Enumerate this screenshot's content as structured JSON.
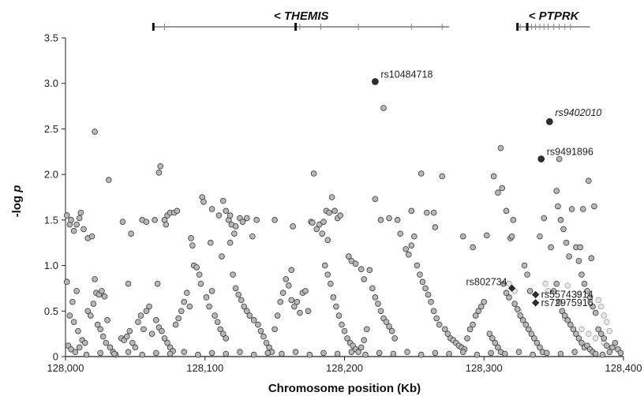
{
  "chart_data": {
    "type": "scatter",
    "title": "",
    "xlabel": "Chromosome position (Kb)",
    "ylabel_main": "-log ",
    "ylabel_italic": "p",
    "xlim": [
      128000,
      128400
    ],
    "ylim": [
      0,
      3.5
    ],
    "x_ticks": [
      {
        "value": 128000,
        "label": "128,000"
      },
      {
        "value": 128100,
        "label": "128,100"
      },
      {
        "value": 128200,
        "label": "128,200"
      },
      {
        "value": 128300,
        "label": "128,300"
      },
      {
        "value": 128400,
        "label": "128,400"
      }
    ],
    "y_ticks": [
      {
        "value": 0,
        "label": "0"
      },
      {
        "value": 0.5,
        "label": "0.5"
      },
      {
        "value": 1.0,
        "label": "1.0"
      },
      {
        "value": 1.5,
        "label": "1.5"
      },
      {
        "value": 2.0,
        "label": "2.0"
      },
      {
        "value": 2.5,
        "label": "2.5"
      },
      {
        "value": 3.0,
        "label": "3.0"
      },
      {
        "value": 3.5,
        "label": "3.5"
      }
    ],
    "grid": false,
    "colors": {
      "background_point_fill": "#b8b8b8",
      "background_point_stroke": "#3a3a3a",
      "faint_point_fill": "#e6e6e6",
      "faint_point_stroke": "#9a9a9a",
      "highlight": "#2e2e2e",
      "axis": "#222222"
    },
    "genes": [
      {
        "name": "< THEMIS",
        "start": 128063,
        "end": 128275,
        "exons": [
          128063,
          128071,
          128165,
          128168,
          128183,
          128210,
          128248,
          128270
        ]
      },
      {
        "name": "< PTPRK",
        "start": 128324,
        "end": 128376,
        "exons": [
          128324,
          128326,
          128331,
          128334,
          128337,
          128340,
          128343,
          128346,
          128350,
          128354,
          128358,
          128362
        ]
      }
    ],
    "highlighted_snps": [
      {
        "label": "rs10484718",
        "x": 128222,
        "y": 3.02,
        "shape": "circle",
        "italic": false
      },
      {
        "label": "rs9402010",
        "x": 128347,
        "y": 2.58,
        "shape": "circle",
        "italic": true
      },
      {
        "label": "rs9491896",
        "x": 128341,
        "y": 2.17,
        "shape": "circle",
        "italic": false
      },
      {
        "label": "rs802734",
        "x": 128320,
        "y": 0.75,
        "shape": "diamond",
        "italic": false
      },
      {
        "label": "rs55743914",
        "x": 128337,
        "y": 0.68,
        "shape": "diamond",
        "italic": false
      },
      {
        "label": "rs72975916",
        "x": 128337,
        "y": 0.59,
        "shape": "diamond",
        "italic": false
      }
    ],
    "points": [
      [
        128001,
        1.55
      ],
      [
        128003,
        1.45
      ],
      [
        128004,
        1.5
      ],
      [
        128006,
        1.38
      ],
      [
        128008,
        1.45
      ],
      [
        128011,
        1.58
      ],
      [
        128013,
        1.4
      ],
      [
        128016,
        1.3
      ],
      [
        128019,
        1.32
      ],
      [
        128010,
        1.52
      ],
      [
        128001,
        0.82
      ],
      [
        128005,
        0.6
      ],
      [
        128008,
        0.72
      ],
      [
        128003,
        0.45
      ],
      [
        128006,
        0.38
      ],
      [
        128009,
        0.28
      ],
      [
        128012,
        0.18
      ],
      [
        128002,
        0.12
      ],
      [
        128004,
        0.08
      ],
      [
        128007,
        0.05
      ],
      [
        128010,
        0.1
      ],
      [
        128014,
        0.15
      ],
      [
        128016,
        0.5
      ],
      [
        128018,
        0.45
      ],
      [
        128020,
        0.58
      ],
      [
        128022,
        0.7
      ],
      [
        128024,
        0.68
      ],
      [
        128026,
        0.72
      ],
      [
        128028,
        0.66
      ],
      [
        128030,
        0.4
      ],
      [
        128021,
        0.85
      ],
      [
        128023,
        0.35
      ],
      [
        128025,
        0.3
      ],
      [
        128027,
        0.22
      ],
      [
        128029,
        0.15
      ],
      [
        128032,
        0.1
      ],
      [
        128034,
        0.05
      ],
      [
        128036,
        0.02
      ],
      [
        128021,
        2.47
      ],
      [
        128031,
        1.94
      ],
      [
        128040,
        0.2
      ],
      [
        128042,
        0.18
      ],
      [
        128044,
        0.22
      ],
      [
        128046,
        0.28
      ],
      [
        128048,
        0.15
      ],
      [
        128050,
        0.1
      ],
      [
        128052,
        0.38
      ],
      [
        128054,
        0.45
      ],
      [
        128056,
        0.3
      ],
      [
        128058,
        0.5
      ],
      [
        128060,
        0.55
      ],
      [
        128062,
        0.25
      ],
      [
        128041,
        1.48
      ],
      [
        128047,
        1.35
      ],
      [
        128055,
        1.5
      ],
      [
        128058,
        1.48
      ],
      [
        128045,
        0.8
      ],
      [
        128066,
        0.8
      ],
      [
        128064,
        1.5
      ],
      [
        128068,
        2.09
      ],
      [
        128067,
        2.02
      ],
      [
        128071,
        1.5
      ],
      [
        128073,
        1.55
      ],
      [
        128075,
        1.58
      ],
      [
        128078,
        1.58
      ],
      [
        128080,
        1.6
      ],
      [
        128072,
        1.45
      ],
      [
        128065,
        0.4
      ],
      [
        128067,
        0.32
      ],
      [
        128069,
        0.28
      ],
      [
        128071,
        0.2
      ],
      [
        128073,
        0.15
      ],
      [
        128075,
        0.1
      ],
      [
        128077,
        0.06
      ],
      [
        128079,
        0.35
      ],
      [
        128081,
        0.42
      ],
      [
        128083,
        0.5
      ],
      [
        128085,
        0.6
      ],
      [
        128087,
        0.7
      ],
      [
        128089,
        0.55
      ],
      [
        128090,
        1.3
      ],
      [
        128091,
        1.22
      ],
      [
        128092,
        1.0
      ],
      [
        128094,
        0.98
      ],
      [
        128096,
        0.9
      ],
      [
        128097,
        0.8
      ],
      [
        128098,
        1.75
      ],
      [
        128099,
        1.7
      ],
      [
        128101,
        0.65
      ],
      [
        128103,
        0.55
      ],
      [
        128105,
        0.72
      ],
      [
        128107,
        0.45
      ],
      [
        128109,
        0.38
      ],
      [
        128111,
        0.3
      ],
      [
        128113,
        0.25
      ],
      [
        128115,
        0.2
      ],
      [
        128105,
        1.62
      ],
      [
        128110,
        1.55
      ],
      [
        128113,
        1.71
      ],
      [
        128115,
        1.6
      ],
      [
        128117,
        1.5
      ],
      [
        128119,
        1.45
      ],
      [
        128121,
        1.35
      ],
      [
        128104,
        1.25
      ],
      [
        128112,
        1.1
      ],
      [
        128118,
        1.25
      ],
      [
        128120,
        0.9
      ],
      [
        128122,
        0.75
      ],
      [
        128124,
        0.68
      ],
      [
        128126,
        0.62
      ],
      [
        128128,
        0.55
      ],
      [
        128130,
        0.5
      ],
      [
        128132,
        0.45
      ],
      [
        128118,
        1.55
      ],
      [
        128122,
        1.43
      ],
      [
        128125,
        1.52
      ],
      [
        128127,
        1.48
      ],
      [
        128130,
        1.52
      ],
      [
        128134,
        1.32
      ],
      [
        128137,
        1.5
      ],
      [
        128135,
        0.4
      ],
      [
        128138,
        0.35
      ],
      [
        128140,
        0.28
      ],
      [
        128142,
        0.22
      ],
      [
        128144,
        0.15
      ],
      [
        128146,
        0.1
      ],
      [
        128148,
        0.05
      ],
      [
        128150,
        0.3
      ],
      [
        128152,
        0.45
      ],
      [
        128154,
        0.6
      ],
      [
        128156,
        0.7
      ],
      [
        128158,
        0.85
      ],
      [
        128160,
        0.78
      ],
      [
        128162,
        0.62
      ],
      [
        128164,
        0.55
      ],
      [
        128150,
        1.5
      ],
      [
        128162,
        0.95
      ],
      [
        128163,
        1.43
      ],
      [
        128166,
        0.6
      ],
      [
        128168,
        0.48
      ],
      [
        128170,
        0.7
      ],
      [
        128172,
        0.72
      ],
      [
        128174,
        0.5
      ],
      [
        128176,
        1.48
      ],
      [
        128177,
        1.47
      ],
      [
        128180,
        1.4
      ],
      [
        128182,
        1.45
      ],
      [
        128184,
        1.35
      ],
      [
        128186,
        1.0
      ],
      [
        128188,
        0.9
      ],
      [
        128190,
        0.8
      ],
      [
        128192,
        0.65
      ],
      [
        128194,
        0.55
      ],
      [
        128196,
        0.45
      ],
      [
        128198,
        0.35
      ],
      [
        128200,
        0.28
      ],
      [
        128178,
        2.01
      ],
      [
        128187,
        1.6
      ],
      [
        128189,
        1.58
      ],
      [
        128191,
        1.75
      ],
      [
        128193,
        1.6
      ],
      [
        128195,
        1.52
      ],
      [
        128197,
        1.55
      ],
      [
        128185,
        1.48
      ],
      [
        128188,
        1.28
      ],
      [
        128202,
        0.2
      ],
      [
        128204,
        0.15
      ],
      [
        128206,
        0.12
      ],
      [
        128208,
        0.08
      ],
      [
        128210,
        0.05
      ],
      [
        128212,
        0.1
      ],
      [
        128214,
        0.18
      ],
      [
        128216,
        0.3
      ],
      [
        128203,
        1.1
      ],
      [
        128205,
        1.05
      ],
      [
        128208,
        1.02
      ],
      [
        128212,
        0.96
      ],
      [
        128214,
        0.85
      ],
      [
        128218,
        0.95
      ],
      [
        128220,
        0.75
      ],
      [
        128222,
        0.65
      ],
      [
        128224,
        0.58
      ],
      [
        128226,
        0.5
      ],
      [
        128228,
        0.42
      ],
      [
        128230,
        0.38
      ],
      [
        128232,
        0.33
      ],
      [
        128234,
        0.28
      ],
      [
        128236,
        0.2
      ],
      [
        128228,
        2.73
      ],
      [
        128222,
        1.73
      ],
      [
        128226,
        1.5
      ],
      [
        128232,
        1.52
      ],
      [
        128238,
        1.5
      ],
      [
        128240,
        1.35
      ],
      [
        128244,
        1.18
      ],
      [
        128246,
        1.12
      ],
      [
        128248,
        1.22
      ],
      [
        128250,
        1.32
      ],
      [
        128252,
        1.0
      ],
      [
        128254,
        0.9
      ],
      [
        128256,
        0.82
      ],
      [
        128258,
        0.75
      ],
      [
        128260,
        0.68
      ],
      [
        128262,
        0.6
      ],
      [
        128264,
        0.5
      ],
      [
        128266,
        0.42
      ],
      [
        128268,
        0.35
      ],
      [
        128248,
        1.6
      ],
      [
        128255,
        2.01
      ],
      [
        128259,
        1.58
      ],
      [
        128264,
        1.58
      ],
      [
        128270,
        1.98
      ],
      [
        128265,
        1.42
      ],
      [
        128272,
        0.3
      ],
      [
        128274,
        0.25
      ],
      [
        128276,
        0.2
      ],
      [
        128278,
        0.18
      ],
      [
        128280,
        0.15
      ],
      [
        128282,
        0.12
      ],
      [
        128284,
        0.1
      ],
      [
        128286,
        0.08
      ],
      [
        128288,
        0.2
      ],
      [
        128290,
        0.3
      ],
      [
        128292,
        0.35
      ],
      [
        128294,
        0.45
      ],
      [
        128296,
        0.5
      ],
      [
        128298,
        0.55
      ],
      [
        128300,
        0.6
      ],
      [
        128285,
        1.32
      ],
      [
        128292,
        1.2
      ],
      [
        128302,
        1.33
      ],
      [
        128307,
        1.98
      ],
      [
        128310,
        1.8
      ],
      [
        128313,
        1.85
      ],
      [
        128316,
        1.6
      ],
      [
        128319,
        1.3
      ],
      [
        128304,
        0.25
      ],
      [
        128306,
        0.2
      ],
      [
        128308,
        0.15
      ],
      [
        128310,
        0.1
      ],
      [
        128312,
        0.05
      ],
      [
        128314,
        0.8
      ],
      [
        128316,
        0.7
      ],
      [
        128318,
        0.65
      ],
      [
        128322,
        0.58
      ],
      [
        128324,
        0.52
      ],
      [
        128326,
        0.45
      ],
      [
        128312,
        2.29
      ],
      [
        128321,
        1.5
      ],
      [
        128320,
        1.32
      ],
      [
        128328,
        0.4
      ],
      [
        128330,
        0.35
      ],
      [
        128332,
        0.3
      ],
      [
        128334,
        0.25
      ],
      [
        128336,
        0.2
      ],
      [
        128338,
        0.15
      ],
      [
        128340,
        0.1
      ],
      [
        128342,
        0.05
      ],
      [
        128329,
        1.0
      ],
      [
        128331,
        0.9
      ],
      [
        128333,
        0.72
      ],
      [
        128340,
        1.32
      ],
      [
        128343,
        1.52
      ],
      [
        128348,
        1.2
      ],
      [
        128352,
        0.8
      ],
      [
        128350,
        0.72
      ],
      [
        128354,
        0.6
      ],
      [
        128356,
        0.5
      ],
      [
        128358,
        0.45
      ],
      [
        128360,
        0.4
      ],
      [
        128362,
        0.35
      ],
      [
        128364,
        0.3
      ],
      [
        128352,
        1.82
      ],
      [
        128353,
        1.65
      ],
      [
        128355,
        1.5
      ],
      [
        128357,
        1.4
      ],
      [
        128359,
        1.25
      ],
      [
        128361,
        1.1
      ],
      [
        128354,
        2.17
      ],
      [
        128363,
        1.62
      ],
      [
        128366,
        1.2
      ],
      [
        128368,
        1.05
      ],
      [
        128370,
        0.9
      ],
      [
        128372,
        0.8
      ],
      [
        128374,
        0.72
      ],
      [
        128376,
        0.65
      ],
      [
        128378,
        0.55
      ],
      [
        128380,
        0.48
      ],
      [
        128366,
        0.25
      ],
      [
        128368,
        0.2
      ],
      [
        128370,
        0.15
      ],
      [
        128372,
        0.1
      ],
      [
        128374,
        0.12
      ],
      [
        128376,
        0.08
      ],
      [
        128378,
        0.05
      ],
      [
        128380,
        0.03
      ],
      [
        128375,
        1.93
      ],
      [
        128379,
        1.65
      ],
      [
        128371,
        1.62
      ],
      [
        128369,
        1.2
      ],
      [
        128377,
        1.08
      ],
      [
        128382,
        0.3
      ],
      [
        128384,
        0.25
      ],
      [
        128386,
        0.2
      ],
      [
        128388,
        0.12
      ],
      [
        128390,
        0.05
      ],
      [
        128392,
        0.1
      ],
      [
        128394,
        0.15
      ],
      [
        128396,
        0.08
      ],
      [
        128398,
        0.04
      ],
      [
        128015,
        0.02
      ],
      [
        128025,
        0.04
      ],
      [
        128035,
        0.03
      ],
      [
        128045,
        0.05
      ],
      [
        128055,
        0.02
      ],
      [
        128065,
        0.04
      ],
      [
        128075,
        0.03
      ],
      [
        128085,
        0.05
      ],
      [
        128095,
        0.02
      ],
      [
        128105,
        0.04
      ],
      [
        128115,
        0.03
      ],
      [
        128125,
        0.05
      ],
      [
        128135,
        0.02
      ],
      [
        128145,
        0.04
      ],
      [
        128155,
        0.03
      ],
      [
        128165,
        0.05
      ],
      [
        128175,
        0.02
      ],
      [
        128185,
        0.04
      ],
      [
        128195,
        0.03
      ],
      [
        128205,
        0.05
      ],
      [
        128215,
        0.02
      ],
      [
        128225,
        0.04
      ],
      [
        128235,
        0.03
      ],
      [
        128245,
        0.05
      ],
      [
        128255,
        0.02
      ],
      [
        128265,
        0.04
      ],
      [
        128275,
        0.03
      ],
      [
        128285,
        0.05
      ],
      [
        128295,
        0.02
      ],
      [
        128305,
        0.04
      ],
      [
        128315,
        0.03
      ],
      [
        128325,
        0.05
      ],
      [
        128335,
        0.02
      ],
      [
        128345,
        0.04
      ],
      [
        128355,
        0.03
      ],
      [
        128365,
        0.05
      ],
      [
        128385,
        0.02
      ]
    ],
    "faint_points": [
      [
        128318,
        0.8
      ],
      [
        128322,
        0.72
      ],
      [
        128325,
        0.5
      ],
      [
        128344,
        0.8
      ],
      [
        128346,
        0.72
      ],
      [
        128360,
        0.78
      ],
      [
        128368,
        0.68
      ],
      [
        128376,
        0.6
      ],
      [
        128382,
        0.62
      ],
      [
        128384,
        0.55
      ],
      [
        128386,
        0.45
      ],
      [
        128388,
        0.38
      ],
      [
        128390,
        0.28
      ],
      [
        128370,
        0.3
      ],
      [
        128375,
        0.25
      ],
      [
        128380,
        0.2
      ],
      [
        128356,
        0.5
      ],
      [
        128358,
        0.42
      ],
      [
        128386,
        0.15
      ]
    ]
  }
}
